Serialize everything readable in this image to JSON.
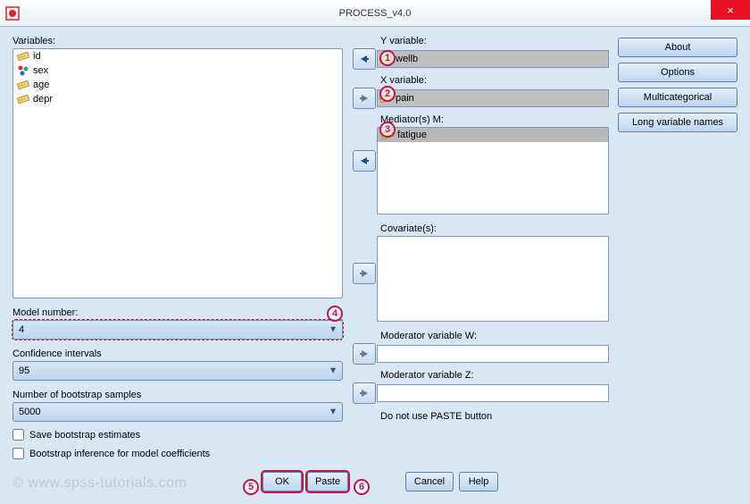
{
  "window": {
    "title": "PROCESS_v4.0"
  },
  "variables": {
    "label": "Variables:",
    "items": [
      {
        "name": "id",
        "icon": "scale"
      },
      {
        "name": "sex",
        "icon": "nominal"
      },
      {
        "name": "age",
        "icon": "scale"
      },
      {
        "name": "depr",
        "icon": "scale"
      }
    ]
  },
  "y": {
    "label": "Y variable:",
    "value": "wellb"
  },
  "x": {
    "label": "X variable:",
    "value": "pain"
  },
  "mediators": {
    "label": "Mediator(s) M:",
    "items": [
      "fatigue"
    ]
  },
  "covariates": {
    "label": "Covariate(s):"
  },
  "modW": {
    "label": "Moderator variable W:",
    "value": ""
  },
  "modZ": {
    "label": "Moderator variable Z:",
    "value": ""
  },
  "paste_warning": "Do not use PASTE button",
  "model_number": {
    "label": "Model number:",
    "value": "4"
  },
  "conf": {
    "label": "Confidence intervals",
    "value": "95"
  },
  "boot": {
    "label": "Number of bootstrap samples",
    "value": "5000"
  },
  "save_boot": {
    "label": "Save bootstrap estimates"
  },
  "boot_inf": {
    "label": "Bootstrap inference for model coefficients"
  },
  "buttons": {
    "ok": "OK",
    "paste": "Paste",
    "cancel": "Cancel",
    "help": "Help",
    "about": "About",
    "options": "Options",
    "multicat": "Multicategorical",
    "longnames": "Long variable names"
  },
  "watermark": "© www.spss-tutorials.com",
  "markers": {
    "m1": "1",
    "m2": "2",
    "m3": "3",
    "m4": "4",
    "m5": "5",
    "m6": "6"
  }
}
